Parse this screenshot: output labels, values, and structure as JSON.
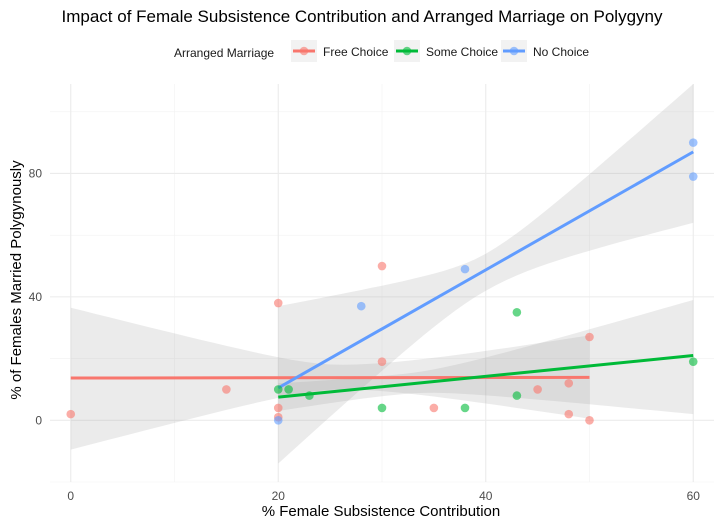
{
  "chart_data": {
    "type": "scatter",
    "title": "Impact of Female Subsistence Contribution and Arranged Marriage on Polygyny",
    "xlabel": "% Female Subsistence Contribution",
    "ylabel": "% of Females Married Polygynously",
    "xlim": [
      -2,
      62
    ],
    "ylim": [
      -20,
      109
    ],
    "x_ticks": [
      0,
      20,
      40,
      60
    ],
    "y_ticks": [
      0,
      40,
      80
    ],
    "grid": true,
    "legend": {
      "title": "Arranged Marriage",
      "position": "top",
      "entries": [
        "Free Choice",
        "Some Choice",
        "No Choice"
      ]
    },
    "series": [
      {
        "name": "Free Choice",
        "color": "#F8766D",
        "points": [
          [
            0,
            2
          ],
          [
            15,
            10
          ],
          [
            20,
            38
          ],
          [
            20,
            4
          ],
          [
            20,
            1
          ],
          [
            30,
            50
          ],
          [
            30,
            19
          ],
          [
            35,
            4
          ],
          [
            45,
            10
          ],
          [
            48,
            12
          ],
          [
            48,
            2
          ],
          [
            50,
            27
          ],
          [
            50,
            0
          ]
        ],
        "fit": {
          "x": [
            0,
            50
          ],
          "y": [
            13.7,
            13.9
          ]
        },
        "ci": {
          "x": [
            0,
            50
          ],
          "upper": [
            36.5,
            27.5
          ],
          "lower": [
            -9.5,
            0.5
          ],
          "center_x": 26,
          "center_band": [
            10,
            18
          ]
        }
      },
      {
        "name": "Some Choice",
        "color": "#00BA38",
        "points": [
          [
            20,
            10
          ],
          [
            21,
            10
          ],
          [
            23,
            8
          ],
          [
            30,
            4
          ],
          [
            38,
            4
          ],
          [
            43,
            35
          ],
          [
            43,
            8
          ],
          [
            60,
            19
          ]
        ],
        "fit": {
          "x": [
            20,
            60
          ],
          "y": [
            7.5,
            21
          ]
        },
        "ci": {
          "x": [
            20,
            60
          ],
          "upper": [
            12,
            39
          ],
          "lower": [
            3,
            2
          ],
          "center_x": 32,
          "center_band": [
            8.5,
            15
          ]
        }
      },
      {
        "name": "No Choice",
        "color": "#619CFF",
        "points": [
          [
            20,
            0
          ],
          [
            28,
            37
          ],
          [
            38,
            49
          ],
          [
            60,
            90
          ],
          [
            60,
            79
          ]
        ],
        "fit": {
          "x": [
            20,
            60
          ],
          "y": [
            10.5,
            87
          ]
        },
        "ci": {
          "x": [
            20,
            60
          ],
          "upper": [
            37,
            109
          ],
          "lower": [
            -14,
            64
          ],
          "center_x": 40,
          "center_band": [
            42,
            54
          ]
        }
      }
    ]
  }
}
